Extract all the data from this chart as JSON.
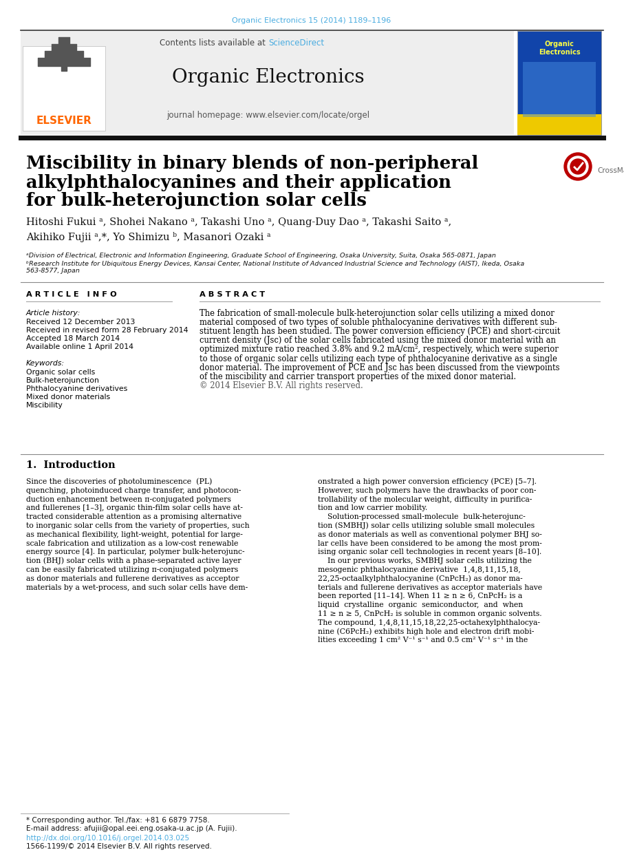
{
  "journal_ref": "Organic Electronics 15 (2014) 1189–1196",
  "journal_ref_color": "#4AACE0",
  "contents_text": "Contents lists available at ",
  "sciencedirect_text": "ScienceDirect",
  "sciencedirect_color": "#4AACE0",
  "journal_name": "Organic Electronics",
  "homepage_text": "journal homepage: www.elsevier.com/locate/orgel",
  "header_bg": "#EEEEEE",
  "elsevier_color": "#FF6600",
  "article_title_line1": "Miscibility in binary blends of non-peripheral",
  "article_title_line2": "alkylphthalocyanines and their application",
  "article_title_line3": "for bulk-heterojunction solar cells",
  "authors": "Hitoshi Fukui ᵃ, Shohei Nakano ᵃ, Takashi Uno ᵃ, Quang-Duy Dao ᵃ, Takashi Saito ᵃ,",
  "authors2": "Akihiko Fujii ᵃ,*, Yo Shimizu ᵇ, Masanori Ozaki ᵃ",
  "affil_a": "ᵃDivision of Electrical, Electronic and Information Engineering, Graduate School of Engineering, Osaka University, Suita, Osaka 565-0871, Japan",
  "affil_b": "ᵇResearch Institute for Ubiquitous Energy Devices, Kansai Center, National Institute of Advanced Industrial Science and Technology (AIST), Ikeda, Osaka",
  "affil_b2": "563-8577, Japan",
  "article_info_header": "A R T I C L E   I N F O",
  "abstract_header": "A B S T R A C T",
  "article_history_label": "Article history:",
  "received1": "Received 12 December 2013",
  "received2": "Received in revised form 28 February 2014",
  "accepted": "Accepted 18 March 2014",
  "available": "Available online 1 April 2014",
  "keywords_label": "Keywords:",
  "kw1": "Organic solar cells",
  "kw2": "Bulk-heterojunction",
  "kw3": "Phthalocyanine derivatives",
  "kw4": "Mixed donor materials",
  "kw5": "Miscibility",
  "abstract_text1": "The fabrication of small-molecule bulk-heterojunction solar cells utilizing a mixed donor",
  "abstract_text2": "material composed of two types of soluble phthalocyanine derivatives with different sub-",
  "abstract_text3": "stituent length has been studied. The power conversion efficiency (PCE) and short-circuit",
  "abstract_text4": "current density (Jsc) of the solar cells fabricated using the mixed donor material with an",
  "abstract_text5": "optimized mixture ratio reached 3.8% and 9.2 mA/cm², respectively, which were superior",
  "abstract_text6": "to those of organic solar cells utilizing each type of phthalocyanine derivative as a single",
  "abstract_text7": "donor material. The improvement of PCE and Jsc has been discussed from the viewpoints",
  "abstract_text8": "of the miscibility and carrier transport properties of the mixed donor material.",
  "abstract_text9": "© 2014 Elsevier B.V. All rights reserved.",
  "intro_header": "1.  Introduction",
  "intro_col1": [
    "Since the discoveries of photoluminescence  (PL)",
    "quenching, photoinduced charge transfer, and photocon-",
    "duction enhancement between π-conjugated polymers",
    "and fullerenes [1–3], organic thin-film solar cells have at-",
    "tracted considerable attention as a promising alternative",
    "to inorganic solar cells from the variety of properties, such",
    "as mechanical flexibility, light-weight, potential for large-",
    "scale fabrication and utilization as a low-cost renewable",
    "energy source [4]. In particular, polymer bulk-heterojunc-",
    "tion (BHJ) solar cells with a phase-separated active layer",
    "can be easily fabricated utilizing π-conjugated polymers",
    "as donor materials and fullerene derivatives as acceptor",
    "materials by a wet-process, and such solar cells have dem-"
  ],
  "intro_col2": [
    "onstrated a high power conversion efficiency (PCE) [5–7].",
    "However, such polymers have the drawbacks of poor con-",
    "trollability of the molecular weight, difficulty in purifica-",
    "tion and low carrier mobility.",
    "    Solution-processed small-molecule  bulk-heterojunc-",
    "tion (SMBHJ) solar cells utilizing soluble small molecules",
    "as donor materials as well as conventional polymer BHJ so-",
    "lar cells have been considered to be among the most prom-",
    "ising organic solar cell technologies in recent years [8–10].",
    "    In our previous works, SMBHJ solar cells utilizing the",
    "mesogenic phthalocyanine derivative  1,4,8,11,15,18,",
    "22,25-octaalkylphthalocyanine (CnPcH₂) as donor ma-",
    "terials and fullerene derivatives as acceptor materials have",
    "been reported [11–14]. When 11 ≥ n ≥ 6, CnPcH₂ is a",
    "liquid  crystalline  organic  semiconductor,  and  when",
    "11 ≥ n ≥ 5, CnPcH₂ is soluble in common organic solvents.",
    "The compound, 1,4,8,11,15,18,22,25-octahexylphthalocya-",
    "nine (C6PcH₂) exhibits high hole and electron drift mobi-",
    "lities exceeding 1 cm² V⁻¹ s⁻¹ and 0.5 cm² V⁻¹ s⁻¹ in the"
  ],
  "footnote1": "* Corresponding author. Tel./fax: +81 6 6879 7758.",
  "footnote2": "E-mail address: afujii@opal.eei.eng.osaka-u.ac.jp (A. Fujii).",
  "doi_text": "http://dx.doi.org/10.1016/j.orgel.2014.03.025",
  "doi_color": "#4AACE0",
  "copyright_text": "1566-1199/© 2014 Elsevier B.V. All rights reserved.",
  "bg_color": "#FFFFFF"
}
